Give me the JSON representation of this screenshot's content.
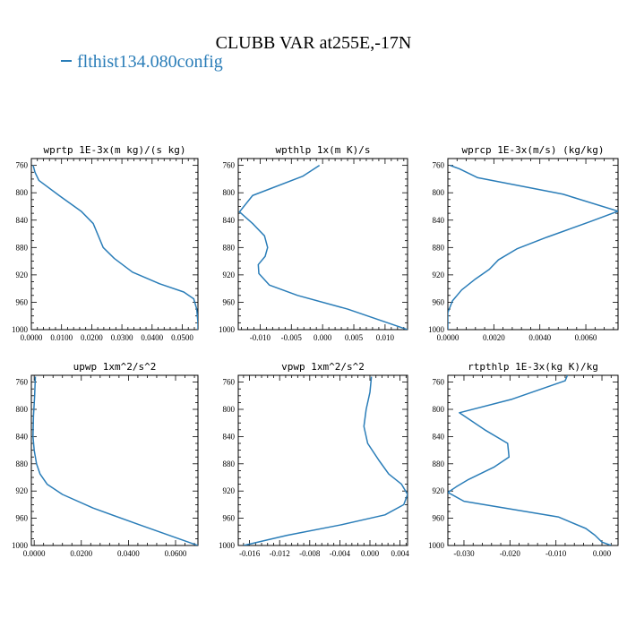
{
  "title": "CLUBB VAR at255E,-17N",
  "legend": {
    "label": "flthist134.080config",
    "color": "#2a7db8"
  },
  "line_color": "#2a7db8",
  "chart_data": [
    {
      "type": "line",
      "title": "wprtp  1E-3x(m kg)/(s kg)",
      "xlim": [
        0,
        0.0552
      ],
      "ylim": [
        1000,
        750
      ],
      "xticks": [
        0,
        0.01,
        0.02,
        0.03,
        0.04,
        0.05
      ],
      "xtick_labels": [
        "0.0000",
        "0.0100",
        "0.0200",
        "0.0300",
        "0.0400",
        "0.0500"
      ],
      "yticks": [
        760,
        800,
        840,
        880,
        920,
        960,
        1000
      ],
      "ytick_labels": [
        "760",
        "800",
        "840",
        "880",
        "920",
        "960",
        "1000"
      ],
      "series": [
        {
          "x": [
            0.0006,
            0.0012,
            0.0025,
            0.0095,
            0.0165,
            0.0205,
            0.0238,
            0.0275,
            0.0335,
            0.0425,
            0.0505,
            0.0538,
            0.0548,
            0.0552,
            0.0552
          ],
          "y": [
            760,
            770,
            782,
            805,
            827,
            845,
            880,
            896,
            916,
            933,
            945,
            955,
            970,
            990,
            1000
          ]
        }
      ]
    },
    {
      "type": "line",
      "title": "wpthlp  1x(m K)/s",
      "xlim": [
        -0.0135,
        0.0136
      ],
      "ylim": [
        1000,
        750
      ],
      "xticks": [
        -0.01,
        -0.005,
        0,
        0.005,
        0.01
      ],
      "xtick_labels": [
        "-0.010",
        "-0.005",
        "0.000",
        "0.005",
        "0.010"
      ],
      "yticks": [
        760,
        800,
        840,
        880,
        920,
        960,
        1000
      ],
      "ytick_labels": [
        "760",
        "800",
        "840",
        "880",
        "920",
        "960",
        "1000"
      ],
      "series": [
        {
          "x": [
            -0.0005,
            -0.0032,
            -0.0112,
            -0.0133,
            -0.0112,
            -0.0093,
            -0.0088,
            -0.0092,
            -0.0103,
            -0.0102,
            -0.0085,
            -0.004,
            0.004,
            0.0136
          ],
          "y": [
            760,
            776,
            804,
            828,
            845,
            863,
            880,
            893,
            905,
            918,
            935,
            950,
            970,
            1000
          ]
        }
      ]
    },
    {
      "type": "line",
      "title": "wprcp  1E-3x(m/s) (kg/kg)",
      "xlim": [
        0,
        0.0074
      ],
      "ylim": [
        1000,
        750
      ],
      "xticks": [
        0,
        0.002,
        0.004,
        0.006
      ],
      "xtick_labels": [
        "0.0000",
        "0.0020",
        "0.0040",
        "0.0060"
      ],
      "yticks": [
        760,
        800,
        840,
        880,
        920,
        960,
        1000
      ],
      "ytick_labels": [
        "760",
        "800",
        "840",
        "880",
        "920",
        "960",
        "1000"
      ],
      "series": [
        {
          "x": [
            0.0001,
            0.0005,
            0.0013,
            0.005,
            0.0074,
            0.0062,
            0.0043,
            0.003,
            0.0022,
            0.0018,
            0.0012,
            0.0006,
            0.0002,
            0.0,
            0.0
          ],
          "y": [
            760,
            765,
            778,
            802,
            827,
            842,
            865,
            882,
            898,
            912,
            926,
            942,
            958,
            975,
            1000
          ]
        }
      ]
    },
    {
      "type": "line",
      "title": "upwp  1xm^2/s^2",
      "xlim": [
        -0.0012,
        0.0695
      ],
      "ylim": [
        1000,
        750
      ],
      "xticks": [
        0,
        0.02,
        0.04,
        0.06
      ],
      "xtick_labels": [
        "0.0000",
        "0.0200",
        "0.0400",
        "0.0600"
      ],
      "yticks": [
        760,
        800,
        840,
        880,
        920,
        960,
        1000
      ],
      "ytick_labels": [
        "760",
        "800",
        "840",
        "880",
        "920",
        "960",
        "1000"
      ],
      "series": [
        {
          "x": [
            0.0005,
            0.0002,
            -0.0003,
            -0.0005,
            0.0,
            0.001,
            0.0025,
            0.0055,
            0.012,
            0.025,
            0.045,
            0.0695
          ],
          "y": [
            752,
            780,
            810,
            840,
            860,
            880,
            895,
            910,
            925,
            945,
            970,
            1000
          ]
        }
      ]
    },
    {
      "type": "line",
      "title": "vpwp  1xm^2/s^2",
      "xlim": [
        -0.0175,
        0.005
      ],
      "ylim": [
        1000,
        750
      ],
      "xticks": [
        -0.016,
        -0.012,
        -0.008,
        -0.004,
        0,
        0.004
      ],
      "xtick_labels": [
        "-0.016",
        "-0.012",
        "-0.008",
        "-0.004",
        "0.000",
        "0.004"
      ],
      "yticks": [
        760,
        800,
        840,
        880,
        920,
        960,
        1000
      ],
      "ytick_labels": [
        "760",
        "800",
        "840",
        "880",
        "920",
        "960",
        "1000"
      ],
      "series": [
        {
          "x": [
            0.0002,
            0.0,
            -0.0005,
            -0.0008,
            -0.0003,
            0.0012,
            0.0025,
            0.0042,
            0.005,
            0.0045,
            0.002,
            -0.004,
            -0.011,
            -0.0168
          ],
          "y": [
            752,
            775,
            800,
            825,
            850,
            875,
            895,
            910,
            925,
            940,
            955,
            970,
            985,
            1000
          ]
        }
      ]
    },
    {
      "type": "line",
      "title": "rtpthlp  1E-3x(kg K)/kg",
      "xlim": [
        -0.0335,
        0.0035
      ],
      "ylim": [
        1000,
        750
      ],
      "xticks": [
        -0.03,
        -0.02,
        -0.01,
        0
      ],
      "xtick_labels": [
        "-0.030",
        "-0.020",
        "-0.010",
        "0.000"
      ],
      "yticks": [
        760,
        800,
        840,
        880,
        920,
        960,
        1000
      ],
      "ytick_labels": [
        "760",
        "800",
        "840",
        "880",
        "920",
        "960",
        "1000"
      ],
      "series": [
        {
          "x": [
            -0.0075,
            -0.008,
            -0.0195,
            -0.031,
            -0.0255,
            -0.0205,
            -0.0202,
            -0.0235,
            -0.029,
            -0.0315,
            -0.0335,
            -0.03,
            -0.0095,
            -0.0035,
            -0.0015,
            0.0,
            0.002
          ],
          "y": [
            750,
            758,
            785,
            805,
            830,
            850,
            870,
            885,
            903,
            913,
            922,
            935,
            958,
            975,
            985,
            995,
            1000
          ]
        }
      ]
    }
  ]
}
